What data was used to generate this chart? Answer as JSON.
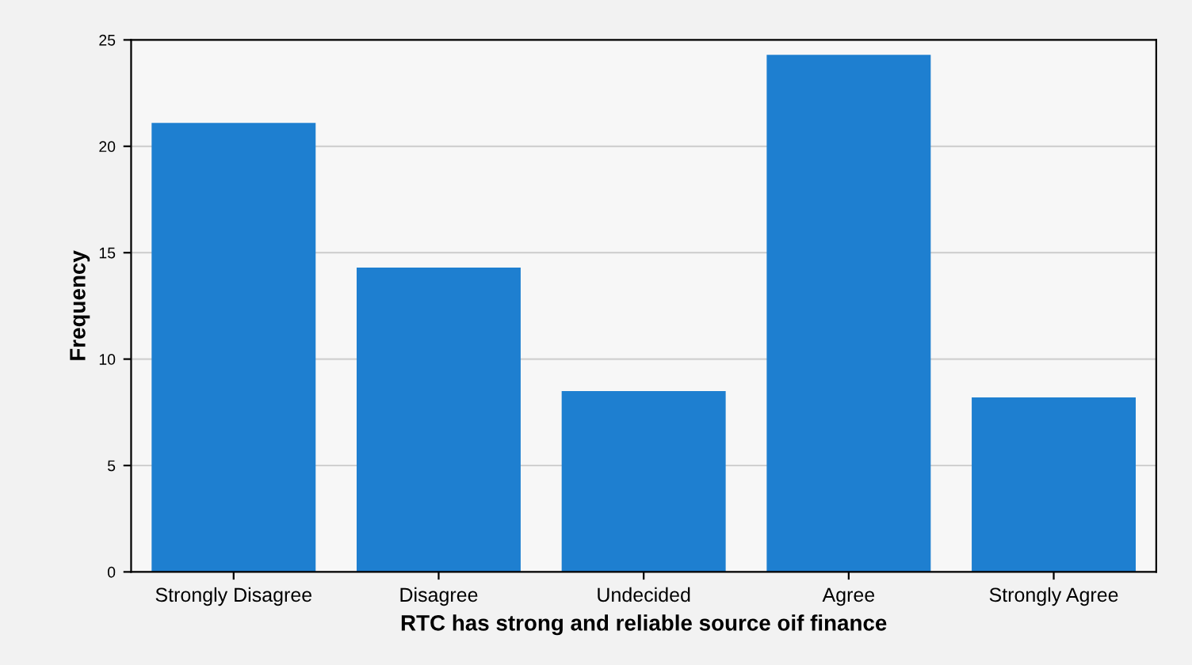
{
  "chart_data": {
    "type": "bar",
    "xlabel": "RTC has strong and reliable source oif finance",
    "ylabel": "Frequency",
    "categories": [
      "Strongly Disagree",
      "Disagree",
      "Undecided",
      "Agree",
      "Strongly Agree"
    ],
    "values": [
      21.1,
      14.3,
      8.5,
      24.3,
      8.2
    ],
    "color": "#1e7fd0",
    "ylim": [
      0,
      25
    ],
    "yticks": [
      0,
      5,
      10,
      15,
      20,
      25
    ],
    "grid": "y"
  }
}
